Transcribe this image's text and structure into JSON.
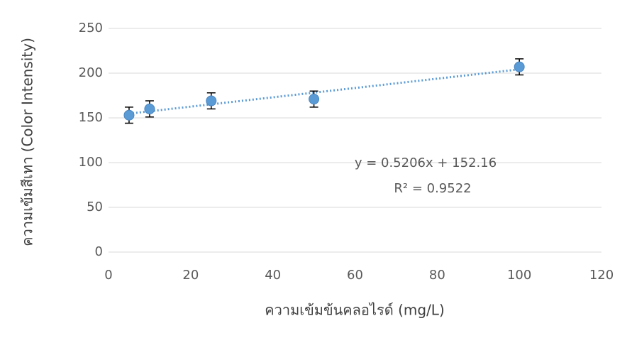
{
  "chart_data": {
    "type": "scatter",
    "x_label": "ความเข้มข้นคลอไรด์ (mg/L)",
    "y_label": "ความเข้มสีเทา (Color Intensity)",
    "x": [
      5,
      10,
      25,
      50,
      100
    ],
    "values": [
      153,
      160,
      169,
      171,
      207
    ],
    "errors": [
      9,
      9,
      9,
      9,
      9
    ],
    "color": "#5b9bd5",
    "xlim": [
      0,
      120
    ],
    "xticks": [
      0,
      20,
      40,
      60,
      80,
      100,
      120
    ],
    "ylim": [
      0,
      250
    ],
    "yticks": [
      0,
      50,
      100,
      150,
      200,
      250
    ],
    "grid": true,
    "trendline": {
      "slope": 0.5206,
      "intercept": 152.16,
      "label": "y = 0.5206x + 152.16",
      "r2": 0.9522,
      "r2_label": "R² = 0.9522"
    }
  }
}
